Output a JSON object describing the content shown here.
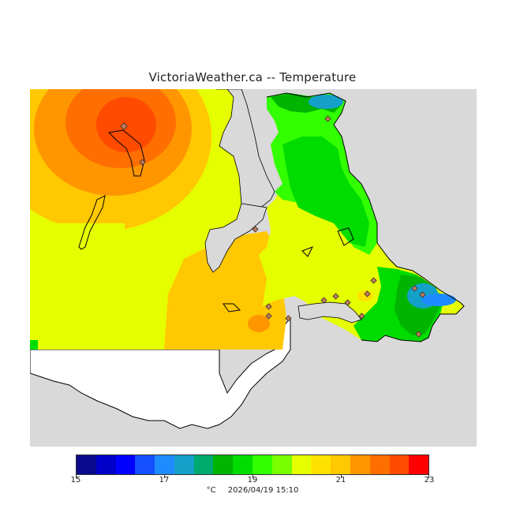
{
  "title": "VictoriaWeather.ca -- Temperature",
  "map": {
    "colors": {
      "no_data": "#d9d9d9",
      "land_outline": "#000000",
      "outside_coverage_land": "#ffffff"
    },
    "stations_icon": "diamond-marker"
  },
  "legend": {
    "colors": [
      "#0a0a8c",
      "#0000c8",
      "#0000ff",
      "#1450ff",
      "#1e8cff",
      "#14a0c8",
      "#00aa6e",
      "#00b400",
      "#00dc00",
      "#32ff00",
      "#78ff00",
      "#e6ff00",
      "#ffe100",
      "#ffc800",
      "#ff9600",
      "#ff6e00",
      "#ff4b00",
      "#ff0000"
    ],
    "tick_values": [
      15,
      17,
      19,
      21,
      23
    ],
    "tick_labels": [
      "15",
      "17",
      "19",
      "21",
      "23"
    ],
    "min": 15,
    "max": 23,
    "unit": "°C",
    "timestamp": "2026/04/19 15:10"
  }
}
